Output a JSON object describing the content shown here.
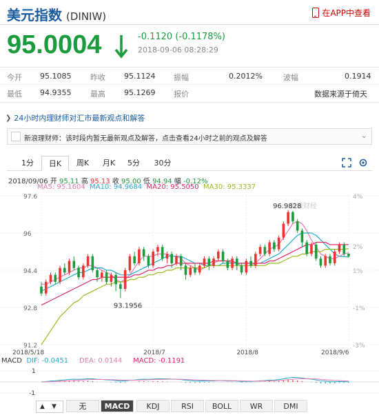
{
  "header": {
    "title": "美元指数",
    "code": "(DINIW)",
    "app_link": "在APP中查看"
  },
  "quote": {
    "price": "95.0004",
    "change": "-0.1120 (-0.1178%)",
    "timestamp": "2018-09-06 08:28:29",
    "color": "#1a9b3c"
  },
  "stats": {
    "row1": [
      {
        "label": "今开",
        "value": "95.1085"
      },
      {
        "label": "昨收",
        "value": "95.1124"
      },
      {
        "label": "振幅",
        "value": "0.2012%"
      },
      {
        "label": "波幅",
        "value": "0.1914"
      }
    ],
    "row2": [
      {
        "label": "最低",
        "value": "94.9355"
      },
      {
        "label": "最高",
        "value": "95.1269"
      },
      {
        "label": "报价",
        "value": "数据来源于倚天"
      }
    ]
  },
  "news": {
    "header": "24小时内理财师对汇市最新观点和解答",
    "message": "新浪理财师：该时段内暂无最新观点及解答，点击查看24小时之前的观点及解答"
  },
  "tabs": [
    "1分",
    "日K",
    "周K",
    "月K",
    "5分",
    "30分"
  ],
  "active_tab": "日K",
  "ohlc_info": {
    "date": "2018/09/06",
    "open_label": "开",
    "open": "95.11",
    "high_label": "高",
    "high": "95.13",
    "close_label": "收",
    "close": "95.00",
    "low_label": "低",
    "low": "94.94",
    "change_label": "幅",
    "change": "-0.12%"
  },
  "ma": {
    "ma5": "MA5: 95.1604",
    "ma10": "MA10: 94.9684",
    "ma20": "MA20: 95.5050",
    "ma30": "MA30: 95.3337",
    "colors": {
      "ma5": "#e07ab0",
      "ma10": "#22aacc",
      "ma20": "#e0246a",
      "ma30": "#9ab820"
    }
  },
  "macd": {
    "title": "MACD",
    "dif": "DIF: -0.0451",
    "dea": "DEA: 0.0144",
    "macd": "MACD: -0.1191",
    "y_ticks": [
      "1",
      "-1"
    ]
  },
  "indicator_tabs": [
    "无",
    "MACD",
    "KDJ",
    "RSI",
    "BOLL",
    "WR",
    "DMI"
  ],
  "active_indicator": "MACD",
  "watermark": "新浪财经",
  "chart_data": {
    "type": "candlestick",
    "y_ticks": [
      "97.6",
      "96",
      "94.4",
      "92.8",
      "91.2"
    ],
    "y_range": [
      91.2,
      97.6
    ],
    "pct_ticks": [
      "4%",
      "2%",
      "1%",
      "-1%",
      "-3%"
    ],
    "x_ticks": [
      "2018/5/18",
      "2018/7",
      "2018/8",
      "2018/9/6"
    ],
    "annotations": {
      "max": "96.9828",
      "min": "93.1956"
    },
    "up_color": "#e33",
    "down_color": "#1a9b3c",
    "candles": [
      [
        93.7,
        93.4,
        93.9,
        93.3
      ],
      [
        93.4,
        93.9,
        94.0,
        93.3
      ],
      [
        93.9,
        94.2,
        94.3,
        93.8
      ],
      [
        94.2,
        93.9,
        94.3,
        93.8
      ],
      [
        93.9,
        94.5,
        94.6,
        93.8
      ],
      [
        94.5,
        94.3,
        94.7,
        94.2
      ],
      [
        94.3,
        94.8,
        94.9,
        94.2
      ],
      [
        94.8,
        94.5,
        95.0,
        94.4
      ],
      [
        94.5,
        94.1,
        94.6,
        94.0
      ],
      [
        94.1,
        94.6,
        94.7,
        94.0
      ],
      [
        94.6,
        95.0,
        95.1,
        94.5
      ],
      [
        95.0,
        94.4,
        95.1,
        94.3
      ],
      [
        94.4,
        94.1,
        94.5,
        93.9
      ],
      [
        94.1,
        94.3,
        94.4,
        93.9
      ],
      [
        94.3,
        93.9,
        94.4,
        93.8
      ],
      [
        93.9,
        94.2,
        94.3,
        93.7
      ],
      [
        94.2,
        93.8,
        94.3,
        93.5
      ],
      [
        93.8,
        93.6,
        93.9,
        93.2
      ],
      [
        93.6,
        94.4,
        94.5,
        93.5
      ],
      [
        94.4,
        95.0,
        95.1,
        94.3
      ],
      [
        95.0,
        94.7,
        95.2,
        94.6
      ],
      [
        94.7,
        95.3,
        95.4,
        94.6
      ],
      [
        95.3,
        95.0,
        95.4,
        94.8
      ],
      [
        95.0,
        94.6,
        95.1,
        94.5
      ],
      [
        94.6,
        95.2,
        95.3,
        94.5
      ],
      [
        95.2,
        95.4,
        95.5,
        95.0
      ],
      [
        95.4,
        94.9,
        95.5,
        94.8
      ],
      [
        94.9,
        95.1,
        95.2,
        94.7
      ],
      [
        95.1,
        94.7,
        95.2,
        94.5
      ],
      [
        94.7,
        95.0,
        95.1,
        94.6
      ],
      [
        95.0,
        94.6,
        95.1,
        94.4
      ],
      [
        94.6,
        94.2,
        94.7,
        94.0
      ],
      [
        94.2,
        94.5,
        94.6,
        94.1
      ],
      [
        94.5,
        94.3,
        94.7,
        94.2
      ],
      [
        94.3,
        94.6,
        94.7,
        94.2
      ],
      [
        94.6,
        94.9,
        95.0,
        94.5
      ],
      [
        94.9,
        94.6,
        95.0,
        94.4
      ],
      [
        94.6,
        94.9,
        95.0,
        94.5
      ],
      [
        94.9,
        95.2,
        95.3,
        94.8
      ],
      [
        95.2,
        94.8,
        95.3,
        94.7
      ],
      [
        94.8,
        94.5,
        94.9,
        94.4
      ],
      [
        94.5,
        94.9,
        95.0,
        94.4
      ],
      [
        94.9,
        94.6,
        95.0,
        94.4
      ],
      [
        94.6,
        94.3,
        94.7,
        94.2
      ],
      [
        94.3,
        94.8,
        94.9,
        94.2
      ],
      [
        94.8,
        94.6,
        95.0,
        94.5
      ],
      [
        94.6,
        95.1,
        95.2,
        94.5
      ],
      [
        95.1,
        95.4,
        95.5,
        95.0
      ],
      [
        95.4,
        95.1,
        95.5,
        95.0
      ],
      [
        95.1,
        95.6,
        95.7,
        95.0
      ],
      [
        95.6,
        95.3,
        95.7,
        95.2
      ],
      [
        95.3,
        95.8,
        95.9,
        95.2
      ],
      [
        95.8,
        96.4,
        96.5,
        95.7
      ],
      [
        96.4,
        96.9,
        96.98,
        96.3
      ],
      [
        96.9,
        96.5,
        96.95,
        96.4
      ],
      [
        96.5,
        96.1,
        96.6,
        96.0
      ],
      [
        96.1,
        95.6,
        96.2,
        95.4
      ],
      [
        95.6,
        95.1,
        95.7,
        95.0
      ],
      [
        95.1,
        95.5,
        95.6,
        95.0
      ],
      [
        95.5,
        94.9,
        95.6,
        94.8
      ],
      [
        94.9,
        94.6,
        95.0,
        94.5
      ],
      [
        94.6,
        95.0,
        95.1,
        94.5
      ],
      [
        95.0,
        94.7,
        95.1,
        94.6
      ],
      [
        94.7,
        95.2,
        95.3,
        94.6
      ],
      [
        95.2,
        95.5,
        95.6,
        95.1
      ],
      [
        95.5,
        95.1,
        95.6,
        95.0
      ],
      [
        95.11,
        95.0,
        95.13,
        94.94
      ]
    ],
    "ma_lines": {
      "ma5": [
        93.8,
        93.8,
        93.9,
        94.0,
        94.1,
        94.2,
        94.3,
        94.4,
        94.5,
        94.5,
        94.6,
        94.6,
        94.5,
        94.4,
        94.3,
        94.2,
        94.0,
        93.9,
        94.0,
        94.2,
        94.5,
        94.8,
        95.0,
        95.0,
        95.0,
        95.1,
        95.1,
        95.1,
        95.0,
        95.0,
        94.9,
        94.7,
        94.6,
        94.5,
        94.4,
        94.5,
        94.6,
        94.7,
        94.8,
        94.8,
        94.8,
        94.7,
        94.7,
        94.6,
        94.6,
        94.6,
        94.7,
        94.9,
        95.1,
        95.3,
        95.4,
        95.5,
        95.8,
        96.1,
        96.4,
        96.5,
        96.4,
        96.1,
        95.7,
        95.4,
        95.1,
        95.0,
        94.9,
        94.9,
        95.0,
        95.1,
        95.16
      ],
      "ma10": [
        93.5,
        93.6,
        93.7,
        93.8,
        93.9,
        94.0,
        94.1,
        94.2,
        94.3,
        94.3,
        94.4,
        94.5,
        94.5,
        94.5,
        94.4,
        94.4,
        94.3,
        94.2,
        94.2,
        94.2,
        94.3,
        94.4,
        94.5,
        94.6,
        94.7,
        94.8,
        94.9,
        95.0,
        95.0,
        95.0,
        95.0,
        94.9,
        94.8,
        94.7,
        94.7,
        94.6,
        94.6,
        94.6,
        94.6,
        94.7,
        94.7,
        94.7,
        94.7,
        94.7,
        94.7,
        94.7,
        94.7,
        94.7,
        94.8,
        94.9,
        95.0,
        95.1,
        95.3,
        95.5,
        95.7,
        95.9,
        96.0,
        96.0,
        96.0,
        95.9,
        95.7,
        95.5,
        95.3,
        95.1,
        95.0,
        94.98,
        94.97
      ],
      "ma20": [
        92.9,
        93.0,
        93.1,
        93.2,
        93.3,
        93.4,
        93.5,
        93.6,
        93.7,
        93.8,
        93.9,
        94.0,
        94.0,
        94.1,
        94.1,
        94.1,
        94.1,
        94.1,
        94.1,
        94.1,
        94.2,
        94.2,
        94.3,
        94.4,
        94.4,
        94.5,
        94.5,
        94.6,
        94.6,
        94.7,
        94.7,
        94.7,
        94.7,
        94.7,
        94.7,
        94.7,
        94.7,
        94.8,
        94.8,
        94.8,
        94.8,
        94.8,
        94.7,
        94.7,
        94.7,
        94.7,
        94.7,
        94.7,
        94.7,
        94.8,
        94.8,
        94.9,
        95.0,
        95.1,
        95.2,
        95.3,
        95.4,
        95.5,
        95.5,
        95.6,
        95.6,
        95.6,
        95.5,
        95.5,
        95.5,
        95.5,
        95.5
      ],
      "ma30": [
        91.2,
        91.5,
        91.8,
        92.1,
        92.4,
        92.6,
        92.8,
        93.0,
        93.1,
        93.3,
        93.4,
        93.5,
        93.6,
        93.7,
        93.8,
        93.8,
        93.9,
        93.9,
        93.9,
        94.0,
        94.0,
        94.1,
        94.1,
        94.2,
        94.2,
        94.3,
        94.3,
        94.4,
        94.4,
        94.5,
        94.5,
        94.5,
        94.5,
        94.5,
        94.5,
        94.5,
        94.6,
        94.6,
        94.6,
        94.6,
        94.6,
        94.6,
        94.6,
        94.6,
        94.6,
        94.6,
        94.6,
        94.6,
        94.6,
        94.7,
        94.7,
        94.7,
        94.8,
        94.9,
        95.0,
        95.0,
        95.1,
        95.1,
        95.2,
        95.2,
        95.2,
        95.3,
        95.3,
        95.3,
        95.3,
        95.3,
        95.33
      ]
    }
  }
}
